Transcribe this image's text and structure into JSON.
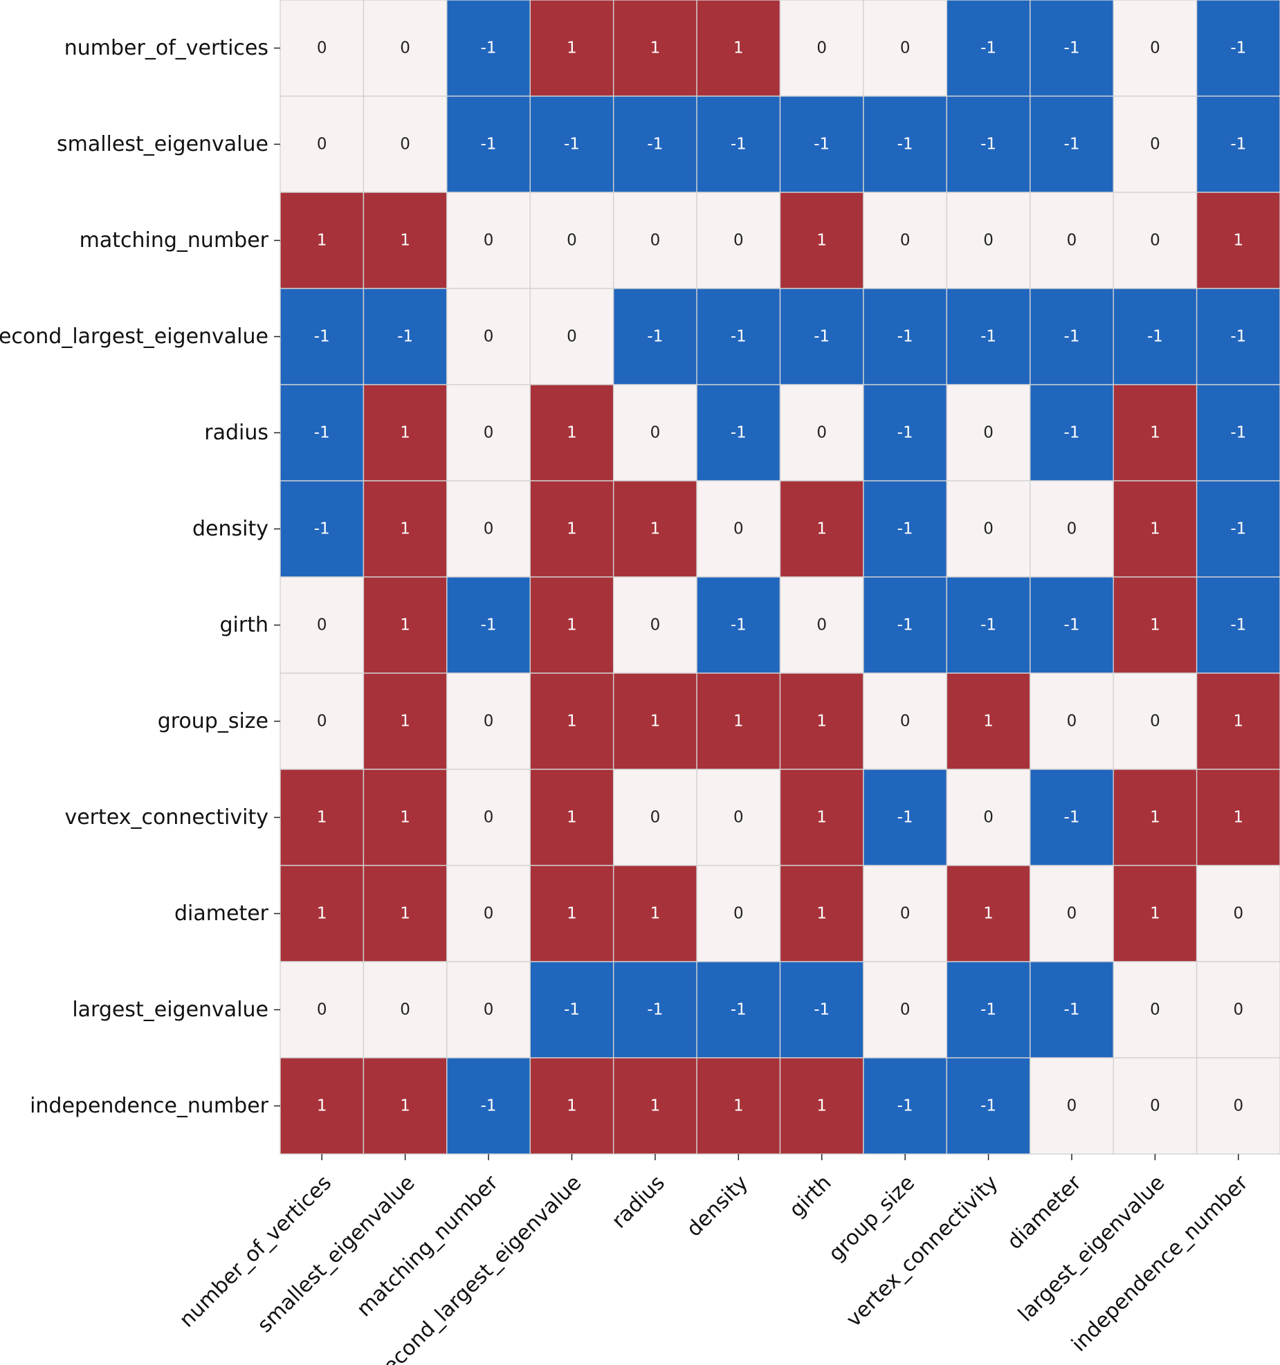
{
  "chart_data": {
    "type": "heatmap",
    "title": "",
    "xlabel": "",
    "ylabel": "",
    "rows": [
      "number_of_vertices",
      "smallest_eigenvalue",
      "matching_number",
      "second_largest_eigenvalue",
      "radius",
      "density",
      "girth",
      "group_size",
      "vertex_connectivity",
      "diameter",
      "largest_eigenvalue",
      "independence_number"
    ],
    "columns": [
      "number_of_vertices",
      "smallest_eigenvalue",
      "matching_number",
      "second_largest_eigenvalue",
      "radius",
      "density",
      "girth",
      "group_size",
      "vertex_connectivity",
      "diameter",
      "largest_eigenvalue",
      "independence_number"
    ],
    "values": [
      [
        0,
        0,
        -1,
        1,
        1,
        1,
        0,
        0,
        -1,
        -1,
        0,
        -1
      ],
      [
        0,
        0,
        -1,
        -1,
        -1,
        -1,
        -1,
        -1,
        -1,
        -1,
        0,
        -1
      ],
      [
        1,
        1,
        0,
        0,
        0,
        0,
        1,
        0,
        0,
        0,
        0,
        1
      ],
      [
        -1,
        -1,
        0,
        0,
        -1,
        -1,
        -1,
        -1,
        -1,
        -1,
        -1,
        -1
      ],
      [
        -1,
        1,
        0,
        1,
        0,
        -1,
        0,
        -1,
        0,
        -1,
        1,
        -1
      ],
      [
        -1,
        1,
        0,
        1,
        1,
        0,
        1,
        -1,
        0,
        0,
        1,
        -1
      ],
      [
        0,
        1,
        -1,
        1,
        0,
        -1,
        0,
        -1,
        -1,
        -1,
        1,
        -1
      ],
      [
        0,
        1,
        0,
        1,
        1,
        1,
        1,
        0,
        1,
        0,
        0,
        1
      ],
      [
        1,
        1,
        0,
        1,
        0,
        0,
        1,
        -1,
        0,
        -1,
        1,
        1
      ],
      [
        1,
        1,
        0,
        1,
        1,
        0,
        1,
        0,
        1,
        0,
        1,
        0
      ],
      [
        0,
        0,
        0,
        -1,
        -1,
        -1,
        -1,
        0,
        -1,
        -1,
        0,
        0
      ],
      [
        1,
        1,
        -1,
        1,
        1,
        1,
        1,
        -1,
        -1,
        0,
        0,
        0
      ]
    ],
    "value_labels": {
      "-1": "-1",
      "0": "0",
      "1": "1"
    },
    "colors": {
      "-1": "#2166bd",
      "0": "#f8f3f2",
      "1": "#a8323a"
    },
    "text_colors": {
      "-1": "#ffffff",
      "0": "#222222",
      "1": "#ffffff"
    },
    "grid_color": "#d2d2d2",
    "colorbar": false
  }
}
